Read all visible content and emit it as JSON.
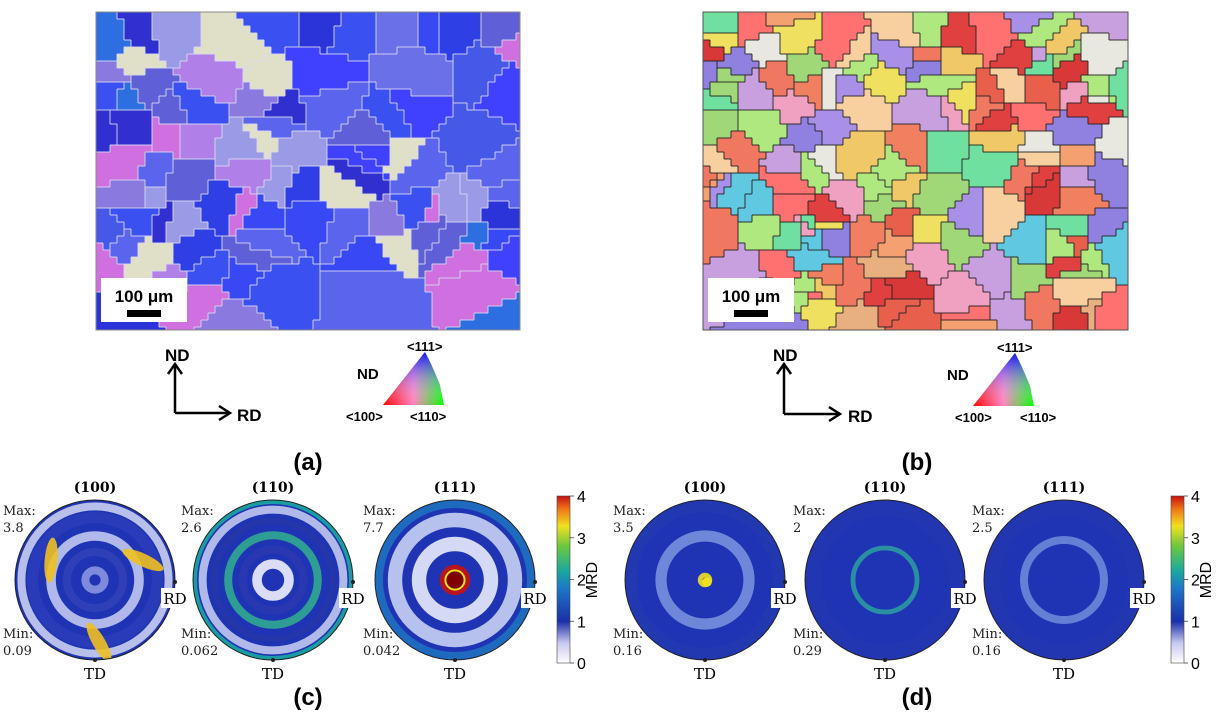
{
  "panels": {
    "a": {
      "label": "(a)",
      "scale_bar": "100 μm"
    },
    "b": {
      "label": "(b)",
      "scale_bar": "100 μm"
    },
    "c": {
      "label": "(c)"
    },
    "d": {
      "label": "(d)"
    }
  },
  "axes": {
    "nd": "ND",
    "rd": "RD"
  },
  "ipf_key": {
    "nd": "ND",
    "top": "<111>",
    "left": "<100>",
    "right": "<110>"
  },
  "pole_figure_labels": {
    "rd": "RD",
    "td": "TD",
    "max_label": "Max:",
    "min_label": "Min:"
  },
  "pole_figures_c": [
    {
      "title": "(100)",
      "max": "3.8",
      "min": "0.09"
    },
    {
      "title": "(110)",
      "max": "2.6",
      "min": "0.062"
    },
    {
      "title": "(111)",
      "max": "7.7",
      "min": "0.042"
    }
  ],
  "pole_figures_d": [
    {
      "title": "(100)",
      "max": "3.5",
      "min": "0.16"
    },
    {
      "title": "(110)",
      "max": "2",
      "min": "0.29"
    },
    {
      "title": "(111)",
      "max": "2.5",
      "min": "0.16"
    }
  ],
  "colorbar": {
    "label": "MRD",
    "ticks": [
      "0",
      "1",
      "2",
      "3",
      "4"
    ]
  },
  "colors": {
    "ebsd_a_base": "#3a3ae6",
    "ebsd_b_base": "#e05a4a",
    "pf_base": "#1a2fa8"
  }
}
